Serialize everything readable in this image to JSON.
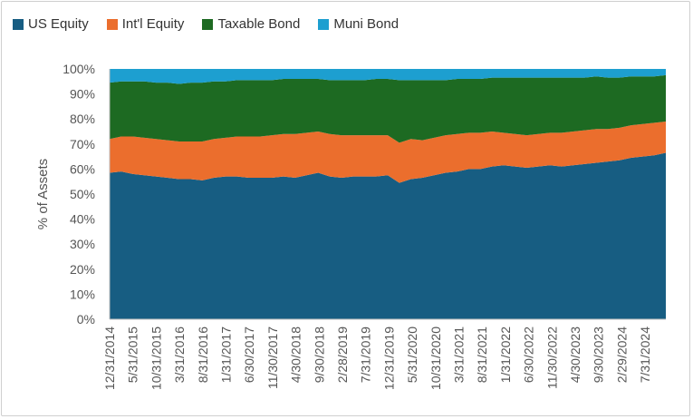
{
  "chart_data": {
    "type": "area",
    "stacked": true,
    "title": "",
    "xlabel": "",
    "ylabel": "% of Assets",
    "ylim": [
      0,
      100
    ],
    "y_tick_labels": [
      "0%",
      "10%",
      "20%",
      "30%",
      "40%",
      "50%",
      "60%",
      "70%",
      "80%",
      "90%",
      "100%"
    ],
    "x_tick_labels": [
      "12/31/2014",
      "5/31/2015",
      "10/31/2015",
      "3/31/2016",
      "8/31/2016",
      "1/31/2017",
      "6/30/2017",
      "11/30/2017",
      "4/30/2018",
      "9/30/2018",
      "2/28/2019",
      "7/31/2019",
      "12/31/2019",
      "5/31/2020",
      "10/31/2020",
      "3/31/2021",
      "8/31/2021",
      "1/31/2022",
      "6/30/2022",
      "11/30/2022",
      "4/30/2023",
      "9/30/2023",
      "2/29/2024",
      "7/31/2024"
    ],
    "grid": false,
    "legend_position": "top-left",
    "x": [
      "12/31/2014",
      "2/28/2015",
      "5/31/2015",
      "8/31/2015",
      "10/31/2015",
      "1/31/2016",
      "3/31/2016",
      "6/30/2016",
      "8/31/2016",
      "11/30/2016",
      "1/31/2017",
      "4/30/2017",
      "6/30/2017",
      "9/30/2017",
      "11/30/2017",
      "2/28/2018",
      "4/30/2018",
      "7/31/2018",
      "9/30/2018",
      "12/31/2018",
      "2/28/2019",
      "5/31/2019",
      "7/31/2019",
      "10/31/2019",
      "12/31/2019",
      "3/31/2020",
      "5/31/2020",
      "8/31/2020",
      "10/31/2020",
      "1/31/2021",
      "3/31/2021",
      "6/30/2021",
      "8/31/2021",
      "11/30/2021",
      "1/31/2022",
      "4/30/2022",
      "6/30/2022",
      "9/30/2022",
      "11/30/2022",
      "2/28/2023",
      "4/30/2023",
      "7/31/2023",
      "9/30/2023",
      "12/31/2023",
      "2/29/2024",
      "5/31/2024",
      "7/31/2024",
      "10/31/2024",
      "12/31/2024"
    ],
    "series": [
      {
        "name": "US Equity",
        "color": "#175d82",
        "values": [
          58.5,
          59,
          58,
          57.5,
          57,
          56.5,
          56,
          56,
          55.5,
          56.5,
          57,
          57,
          56.5,
          56.5,
          56.5,
          57,
          56.5,
          57.5,
          58.5,
          57,
          56.5,
          57,
          57,
          57,
          57.5,
          54.5,
          56,
          56.5,
          57.5,
          58.5,
          59,
          60,
          60,
          61,
          61.5,
          61,
          60.5,
          61,
          61.5,
          61,
          61.5,
          62,
          62.5,
          63,
          63.5,
          64.5,
          65,
          65.5,
          66.5
        ]
      },
      {
        "name": "Int'l Equity",
        "color": "#eb6e2d",
        "values": [
          13.5,
          14,
          15,
          15,
          15,
          15,
          15,
          15,
          15.5,
          15.5,
          15.5,
          16,
          16.5,
          16.5,
          17,
          17,
          17.5,
          17,
          16.5,
          17,
          17,
          16.5,
          16.5,
          16.5,
          16,
          16,
          16,
          15,
          15,
          15,
          15,
          14.5,
          14.5,
          14,
          13,
          13,
          13,
          13,
          13,
          13.5,
          13.5,
          13.5,
          13.5,
          13,
          13,
          13,
          13,
          13,
          12.5
        ]
      },
      {
        "name": "Taxable Bond",
        "color": "#1d6a22",
        "values": [
          22.5,
          22,
          22,
          22.5,
          22.5,
          23,
          23,
          23.5,
          23.5,
          23,
          22.5,
          22.5,
          22.5,
          22.5,
          22,
          22,
          22,
          21.5,
          21,
          21.5,
          22,
          22,
          22,
          22.5,
          22.5,
          25,
          23.5,
          24,
          23,
          22,
          22,
          21.5,
          21.5,
          21.5,
          22,
          22.5,
          23,
          22.5,
          22,
          22,
          21.5,
          21,
          21,
          20.5,
          20,
          19.5,
          19,
          18.5,
          18.5
        ]
      },
      {
        "name": "Muni Bond",
        "color": "#1d9fd0",
        "values": [
          5.5,
          5,
          5,
          5,
          5.5,
          5.5,
          6,
          5.5,
          5.5,
          5,
          5,
          4.5,
          4.5,
          4.5,
          4.5,
          4,
          4,
          4,
          4,
          4.5,
          4.5,
          4.5,
          4.5,
          4,
          4,
          4.5,
          4.5,
          4.5,
          4.5,
          4.5,
          4,
          4,
          4,
          3.5,
          3.5,
          3.5,
          3.5,
          3.5,
          3.5,
          3.5,
          3.5,
          3.5,
          3,
          3.5,
          3.5,
          3,
          3,
          3,
          2.5
        ]
      }
    ]
  }
}
